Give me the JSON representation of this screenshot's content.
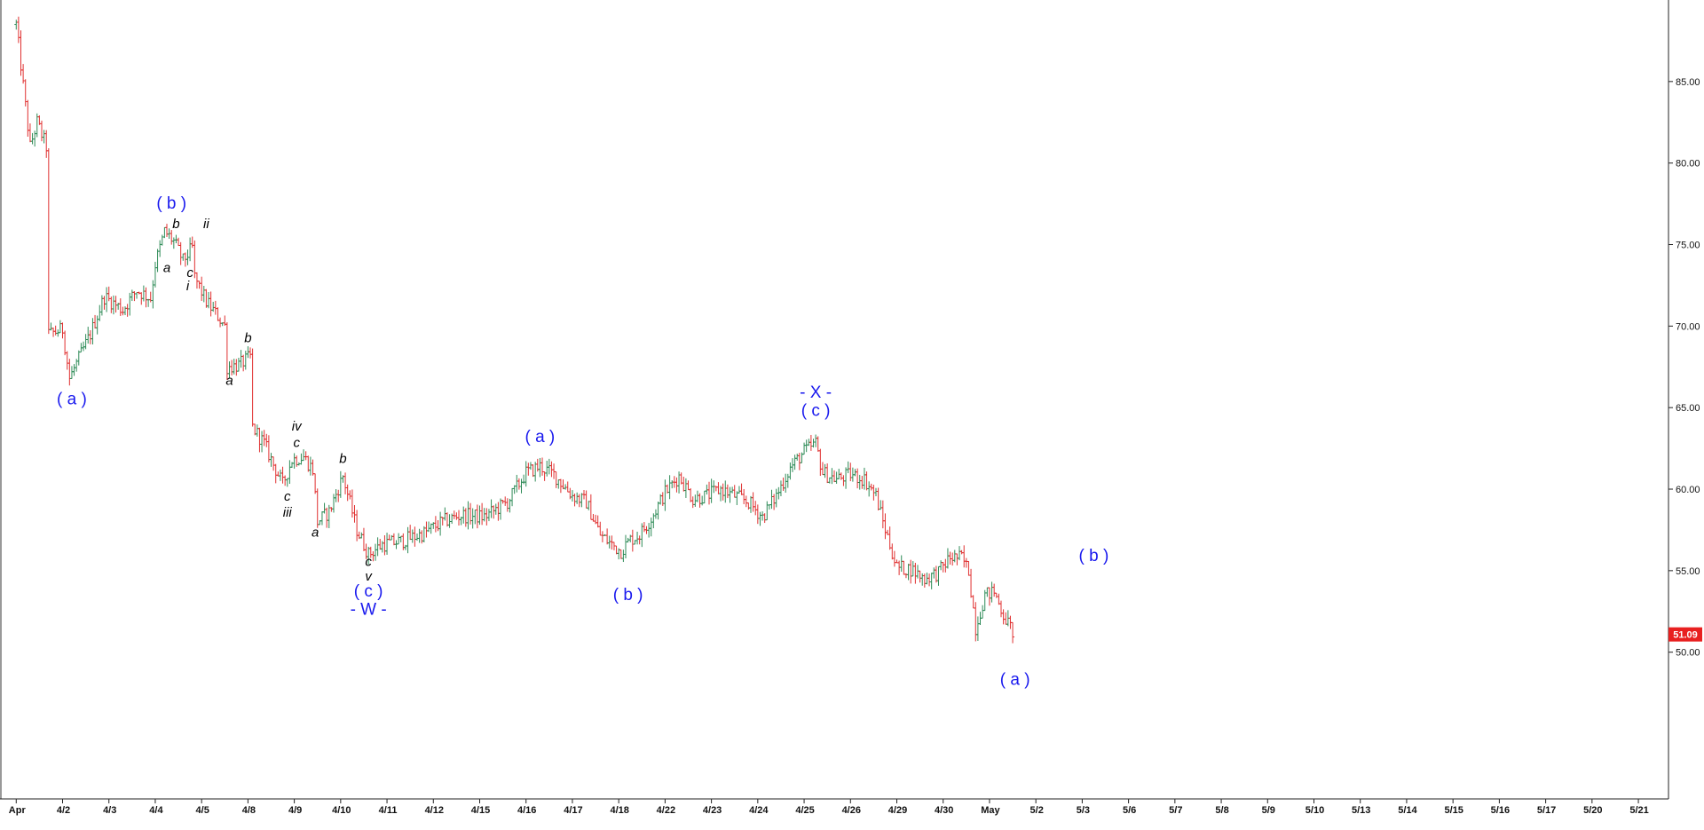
{
  "chart_data": {
    "type": "candlestick",
    "title": "",
    "xlabel": "",
    "ylabel": "",
    "ylim": [
      41.0,
      90.0
    ],
    "y_ticks": [
      "85.00",
      "80.00",
      "75.00",
      "70.00",
      "65.00",
      "60.00",
      "55.00",
      "50.00"
    ],
    "y_tick_values": [
      85,
      80,
      75,
      70,
      65,
      60,
      55,
      50
    ],
    "x_tick_labels": [
      "Apr",
      "4/2",
      "4/3",
      "4/4",
      "4/5",
      "4/8",
      "4/9",
      "4/10",
      "4/11",
      "4/12",
      "4/15",
      "4/16",
      "4/17",
      "4/18",
      "4/22",
      "4/23",
      "4/24",
      "4/25",
      "4/26",
      "4/29",
      "4/30",
      "May",
      "5/2",
      "5/3",
      "5/6",
      "5/7",
      "5/8",
      "5/9",
      "5/10",
      "5/13",
      "5/14",
      "5/15",
      "5/16",
      "5/17",
      "5/20",
      "5/21"
    ],
    "last_price": "51.09",
    "up_color": "#2e8b57",
    "down_color": "#e03030",
    "grid": false,
    "path_points": [
      [
        0,
        88.5
      ],
      [
        0.3,
        81
      ],
      [
        0.45,
        82.5
      ],
      [
        0.65,
        81
      ],
      [
        0.68,
        76
      ],
      [
        0.7,
        69.5
      ],
      [
        1.0,
        69.8
      ],
      [
        1.15,
        66.8
      ],
      [
        1.35,
        68
      ],
      [
        1.6,
        69.5
      ],
      [
        1.9,
        71.8
      ],
      [
        2.3,
        71.0
      ],
      [
        2.6,
        72.2
      ],
      [
        2.9,
        71.7
      ],
      [
        3.0,
        73.8
      ],
      [
        3.2,
        75.8
      ],
      [
        3.4,
        75.2
      ],
      [
        3.6,
        74.0
      ],
      [
        3.8,
        74.8
      ],
      [
        3.85,
        73.0
      ],
      [
        4.1,
        71.5
      ],
      [
        4.35,
        70.6
      ],
      [
        4.5,
        70.0
      ],
      [
        4.55,
        67.5
      ],
      [
        4.8,
        67.6
      ],
      [
        5.05,
        68.1
      ],
      [
        5.1,
        63.8
      ],
      [
        5.35,
        62.8
      ],
      [
        5.55,
        61.5
      ],
      [
        5.75,
        60.3
      ],
      [
        5.95,
        61.8
      ],
      [
        6.2,
        62.0
      ],
      [
        6.4,
        61.2
      ],
      [
        6.5,
        58.0
      ],
      [
        6.75,
        58.6
      ],
      [
        7.05,
        60.8
      ],
      [
        7.35,
        57.5
      ],
      [
        7.6,
        56.0
      ],
      [
        7.9,
        56.6
      ],
      [
        8.3,
        56.8
      ],
      [
        8.8,
        57.3
      ],
      [
        9.2,
        58.0
      ],
      [
        9.6,
        58.4
      ],
      [
        10.1,
        58.3
      ],
      [
        10.6,
        59.2
      ],
      [
        11.0,
        61.0
      ],
      [
        11.3,
        61.4
      ],
      [
        11.6,
        60.9
      ],
      [
        12.0,
        59.6
      ],
      [
        12.3,
        59.2
      ],
      [
        12.6,
        57.2
      ],
      [
        12.85,
        56.6
      ],
      [
        13.05,
        56.2
      ],
      [
        13.25,
        56.9
      ],
      [
        13.45,
        57.2
      ],
      [
        13.7,
        58.2
      ],
      [
        14.0,
        59.8
      ],
      [
        14.3,
        60.8
      ],
      [
        14.6,
        59.4
      ],
      [
        14.9,
        59.6
      ],
      [
        15.2,
        60.0
      ],
      [
        15.5,
        59.6
      ],
      [
        15.8,
        59.2
      ],
      [
        16.1,
        58.3
      ],
      [
        16.4,
        59.6
      ],
      [
        16.7,
        61.3
      ],
      [
        17.0,
        62.3
      ],
      [
        17.25,
        62.8
      ],
      [
        17.4,
        61.0
      ],
      [
        17.7,
        60.6
      ],
      [
        18.0,
        60.9
      ],
      [
        18.3,
        60.6
      ],
      [
        18.55,
        59.6
      ],
      [
        18.7,
        58.0
      ],
      [
        19.0,
        55.2
      ],
      [
        19.3,
        55.1
      ],
      [
        19.6,
        54.5
      ],
      [
        19.9,
        54.9
      ],
      [
        20.15,
        55.8
      ],
      [
        20.4,
        55.8
      ],
      [
        20.55,
        55.0
      ],
      [
        20.7,
        51.5
      ],
      [
        20.9,
        53.5
      ],
      [
        21.1,
        53.7
      ],
      [
        21.3,
        52.3
      ],
      [
        21.55,
        51.0
      ]
    ],
    "labels": [
      {
        "text": "( a )",
        "x": 1.2,
        "y": 65.2,
        "color": "blue"
      },
      {
        "text": "( b )",
        "x": 3.35,
        "y": 77.2,
        "color": "blue"
      },
      {
        "text": "b",
        "x": 3.45,
        "y": 76.0,
        "color": "black"
      },
      {
        "text": "ii",
        "x": 4.1,
        "y": 76.0,
        "color": "black"
      },
      {
        "text": "a",
        "x": 3.25,
        "y": 73.3,
        "color": "black"
      },
      {
        "text": "c",
        "x": 3.75,
        "y": 73.0,
        "color": "black"
      },
      {
        "text": "i",
        "x": 3.7,
        "y": 72.2,
        "color": "black"
      },
      {
        "text": "b",
        "x": 5.0,
        "y": 69.0,
        "color": "black"
      },
      {
        "text": "a",
        "x": 4.6,
        "y": 66.4,
        "color": "black"
      },
      {
        "text": "iv",
        "x": 6.05,
        "y": 63.6,
        "color": "black"
      },
      {
        "text": "c",
        "x": 6.05,
        "y": 62.6,
        "color": "black"
      },
      {
        "text": "b",
        "x": 7.05,
        "y": 61.6,
        "color": "black"
      },
      {
        "text": "c",
        "x": 5.85,
        "y": 59.3,
        "color": "black"
      },
      {
        "text": "iii",
        "x": 5.85,
        "y": 58.3,
        "color": "black"
      },
      {
        "text": "a",
        "x": 6.45,
        "y": 57.1,
        "color": "black"
      },
      {
        "text": "c",
        "x": 7.6,
        "y": 55.3,
        "color": "black"
      },
      {
        "text": "v",
        "x": 7.6,
        "y": 54.4,
        "color": "black"
      },
      {
        "text": "( c )",
        "x": 7.6,
        "y": 53.4,
        "color": "blue"
      },
      {
        "text": "- W -",
        "x": 7.6,
        "y": 52.3,
        "color": "blue"
      },
      {
        "text": "( a )",
        "x": 11.3,
        "y": 62.9,
        "color": "blue"
      },
      {
        "text": "( b )",
        "x": 13.2,
        "y": 53.2,
        "color": "blue"
      },
      {
        "text": "- X -",
        "x": 17.25,
        "y": 65.6,
        "color": "blue"
      },
      {
        "text": "( c )",
        "x": 17.25,
        "y": 64.5,
        "color": "blue"
      },
      {
        "text": "( b )",
        "x": 23.25,
        "y": 55.6,
        "color": "blue"
      },
      {
        "text": "( a )",
        "x": 21.55,
        "y": 48.0,
        "color": "blue"
      }
    ]
  }
}
